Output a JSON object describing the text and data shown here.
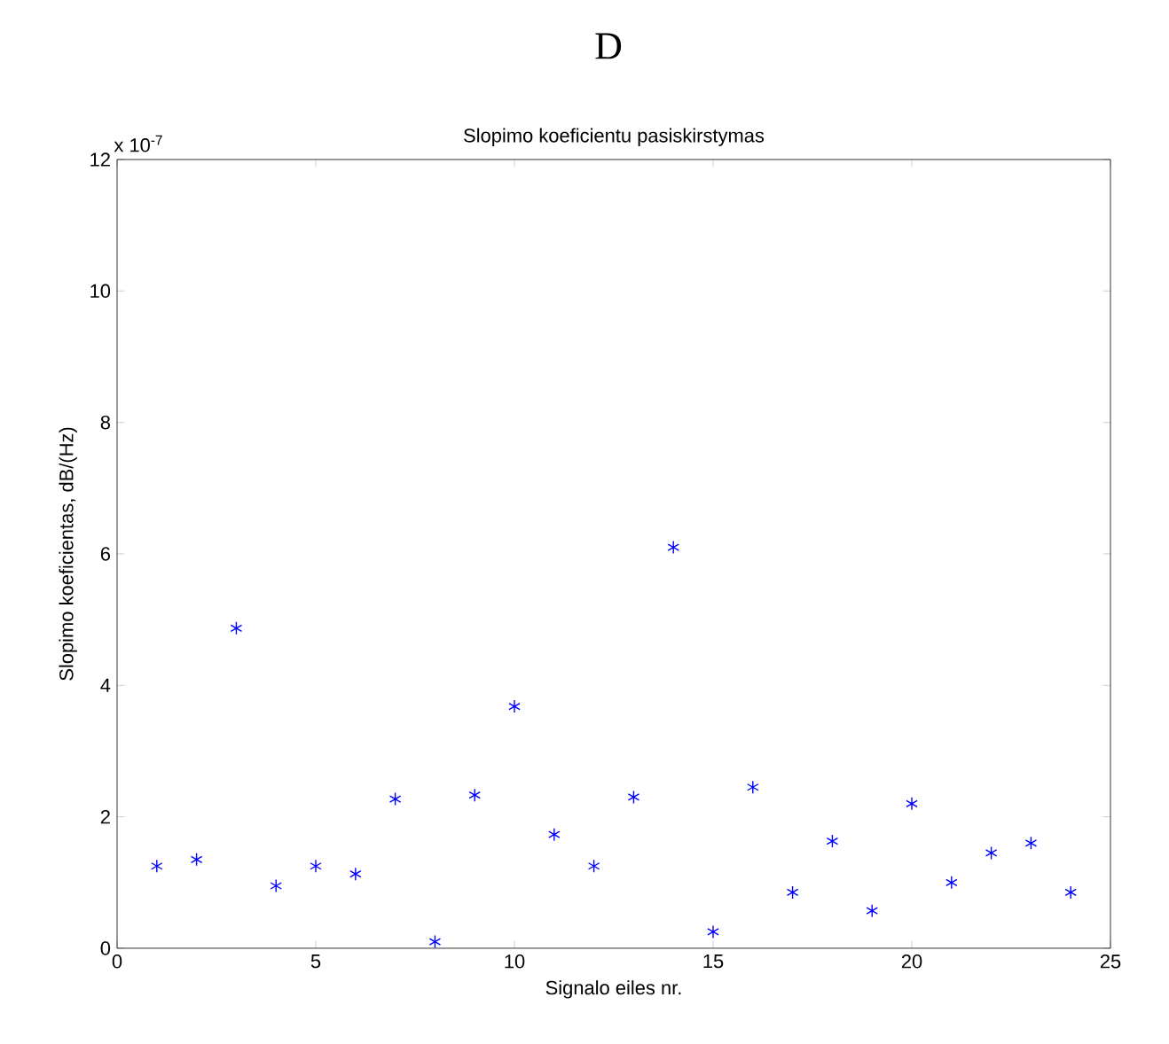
{
  "chart_data": {
    "type": "scatter",
    "title": "Slopimo koeficientu pasiskirstymas",
    "xlabel": "Signalo eiles nr.",
    "ylabel": "Slopimo koeficientas, dB/(Hz)",
    "annotations": [
      "D",
      "x 10$^{-7}$"
    ],
    "x": [
      1,
      2,
      3,
      4,
      5,
      6,
      7,
      8,
      9,
      10,
      11,
      12,
      13,
      14,
      15,
      16,
      17,
      18,
      19,
      20,
      21,
      22,
      23,
      24
    ],
    "series": [
      {
        "color": "#0000ff",
        "values": [
          1.25,
          1.35,
          4.87,
          0.95,
          1.25,
          1.13,
          2.27,
          0.1,
          2.33,
          3.68,
          1.73,
          1.25,
          2.3,
          6.1,
          0.25,
          2.45,
          0.85,
          1.63,
          0.57,
          2.2,
          1.0,
          1.45,
          1.6,
          0.85
        ]
      }
    ],
    "xlim": [
      0,
      25
    ],
    "ylim": [
      0,
      12
    ],
    "xticks": [
      0,
      5,
      10,
      15,
      20,
      25
    ],
    "yticks": [
      0,
      2,
      4,
      6,
      8,
      10,
      12
    ],
    "marker": "cross"
  }
}
